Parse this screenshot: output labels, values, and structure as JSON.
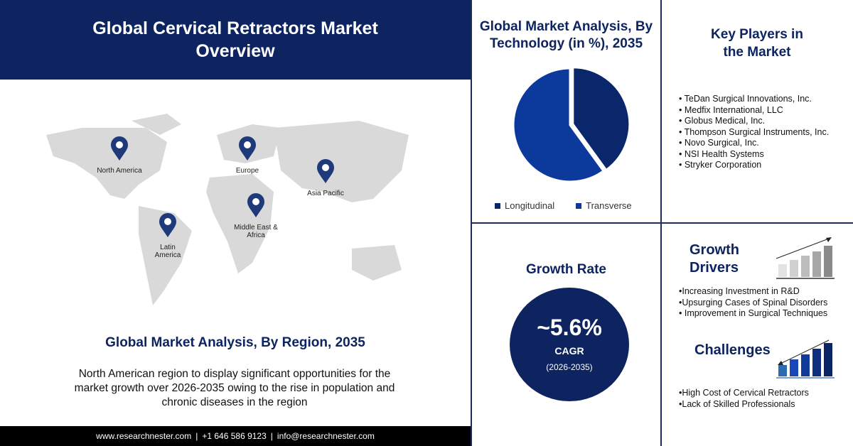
{
  "header": {
    "title": "Global Cervical Retractors Market Overview"
  },
  "map": {
    "regions": [
      {
        "label": "North America"
      },
      {
        "label": "Europe"
      },
      {
        "label": "Asia Pacific"
      },
      {
        "label": "Middle East & Africa"
      },
      {
        "label": "Latin America"
      }
    ],
    "title": "Global Market Analysis, By Region, 2035",
    "description": "North American region to display significant opportunities for the market growth over 2026-2035  owing to the rise in population and chronic diseases in the region"
  },
  "footer": {
    "website": "www.researchnester.com",
    "phone": "+1 646 586 9123",
    "email": "info@researchnester.com",
    "sep": "|"
  },
  "technology": {
    "title": "Global Market Analysis, By Technology (in %), 2035",
    "chart_data": {
      "type": "pie",
      "series": [
        {
          "name": "Longitudinal",
          "value": 40,
          "color": "#0a276b"
        },
        {
          "name": "Transverse",
          "value": 60,
          "color": "#0b3a9c"
        }
      ]
    }
  },
  "key_players": {
    "title": "Key Players in the Market",
    "items": [
      "TeDan Surgical Innovations, Inc.",
      "Medfix International, LLC",
      "Globus Medical, Inc.",
      "Thompson Surgical Instruments, Inc.",
      "Novo Surgical, Inc.",
      "NSI Health Systems",
      "Stryker Corporation"
    ]
  },
  "growth": {
    "title": "Growth Rate",
    "value": "~5.6%",
    "label": "CAGR",
    "period": "(2026-2035)"
  },
  "drivers": {
    "title": "Growth Drivers",
    "items": [
      "•Increasing Investment in R&D",
      "•Upsurging Cases of Spinal Disorders",
      "• Improvement in Surgical Techniques"
    ]
  },
  "challenges": {
    "title": "Challenges",
    "items": [
      "•High Cost of Cervical Retractors",
      "•Lack of Skilled Professionals"
    ]
  }
}
